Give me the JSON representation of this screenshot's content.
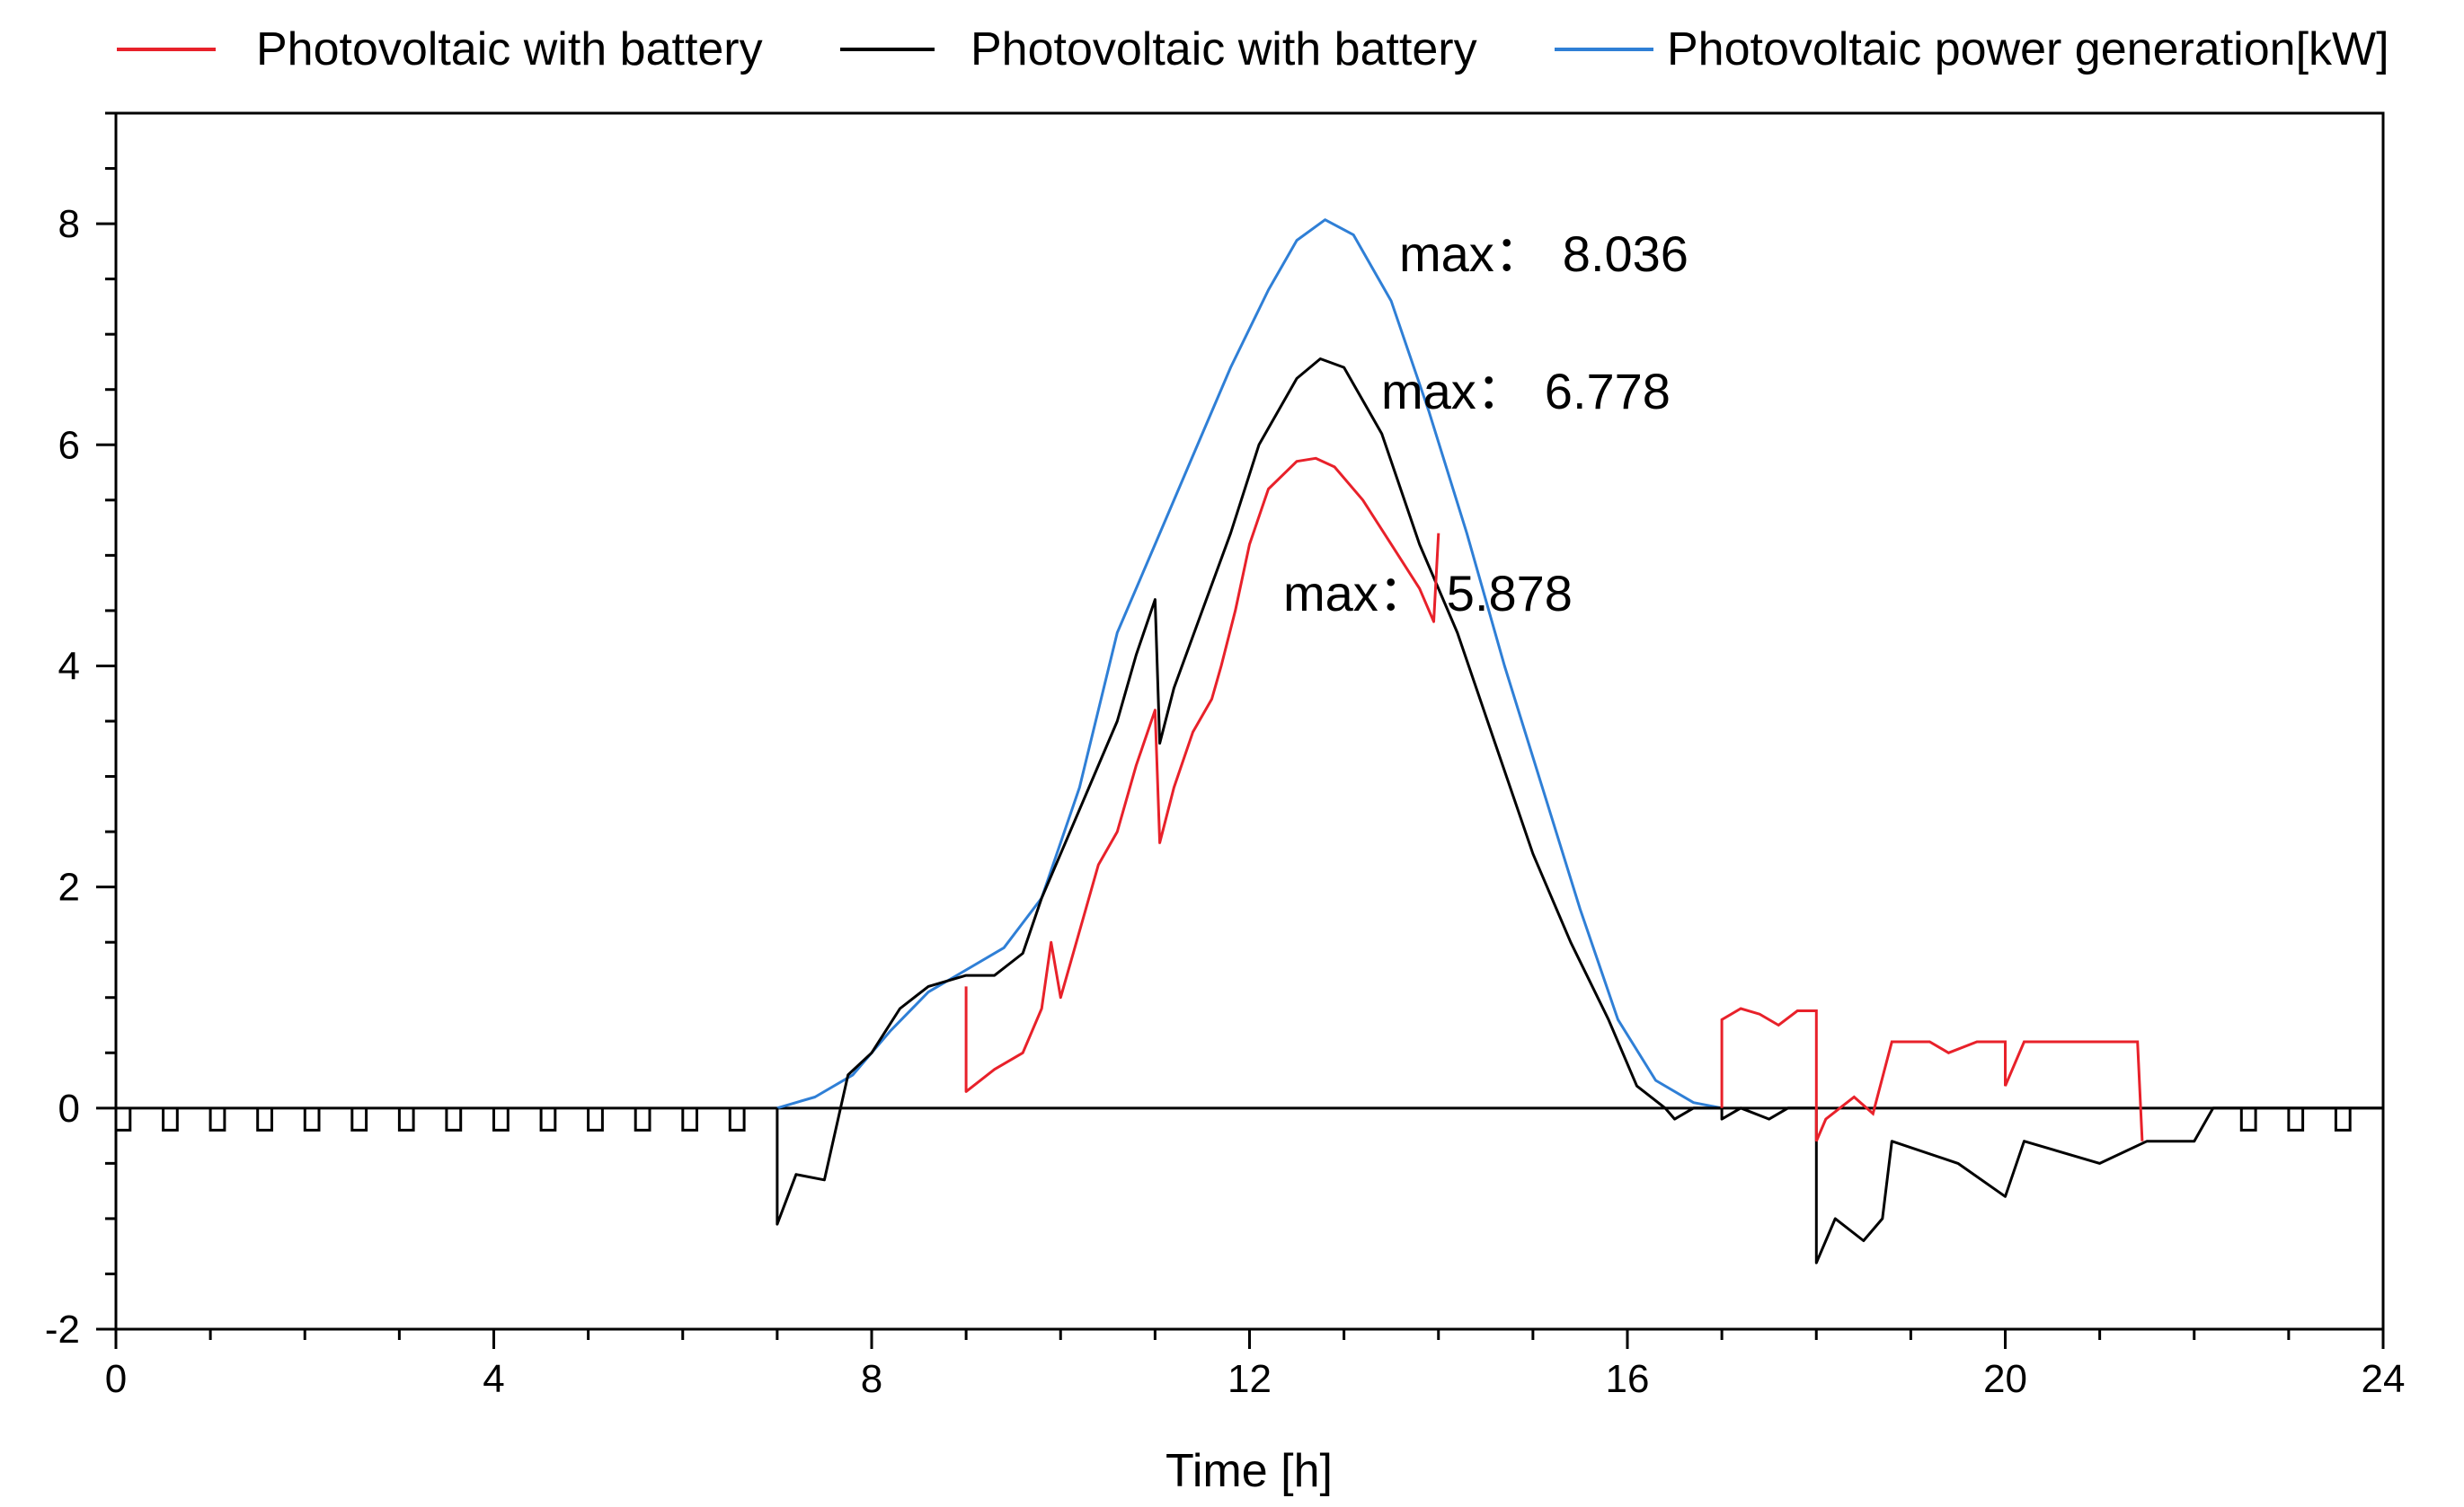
{
  "chart_data": {
    "type": "line",
    "title": "",
    "xlabel": "Time [h]",
    "ylabel": "",
    "xlim": [
      0,
      24
    ],
    "ylim": [
      -2,
      9
    ],
    "x_ticks": [
      0,
      4,
      8,
      12,
      16,
      20,
      24
    ],
    "y_ticks": [
      -2,
      0,
      2,
      4,
      6,
      8
    ],
    "legend_position": "top",
    "series": [
      {
        "name": "Photovoltaic with battery",
        "color": "#e8212a",
        "points": [
          [
            9.0,
            1.1
          ],
          [
            9.0,
            0.15
          ],
          [
            9.3,
            0.35
          ],
          [
            9.6,
            0.5
          ],
          [
            9.8,
            0.9
          ],
          [
            9.9,
            1.5
          ],
          [
            10.0,
            1.0
          ],
          [
            10.2,
            1.6
          ],
          [
            10.4,
            2.2
          ],
          [
            10.6,
            2.5
          ],
          [
            10.8,
            3.1
          ],
          [
            11.0,
            3.6
          ],
          [
            11.05,
            2.4
          ],
          [
            11.2,
            2.9
          ],
          [
            11.4,
            3.4
          ],
          [
            11.6,
            3.7
          ],
          [
            11.7,
            4.0
          ],
          [
            11.85,
            4.5
          ],
          [
            12.0,
            5.1
          ],
          [
            12.2,
            5.6
          ],
          [
            12.5,
            5.85
          ],
          [
            12.7,
            5.878
          ],
          [
            12.9,
            5.8
          ],
          [
            13.2,
            5.5
          ],
          [
            13.5,
            5.1
          ],
          [
            13.8,
            4.7
          ],
          [
            13.95,
            4.4
          ],
          [
            14.0,
            5.2
          ]
        ]
      },
      {
        "name": "Photovoltaic with battery",
        "color": "#000000",
        "points": [
          [
            7.0,
            0.0
          ],
          [
            7.0,
            -1.05
          ],
          [
            7.2,
            -0.6
          ],
          [
            7.5,
            -0.65
          ],
          [
            7.75,
            0.3
          ],
          [
            8.0,
            0.5
          ],
          [
            8.3,
            0.9
          ],
          [
            8.6,
            1.1
          ],
          [
            9.0,
            1.2
          ],
          [
            9.3,
            1.2
          ],
          [
            9.6,
            1.4
          ],
          [
            9.8,
            1.9
          ],
          [
            10.0,
            2.3
          ],
          [
            10.3,
            2.9
          ],
          [
            10.6,
            3.5
          ],
          [
            10.8,
            4.1
          ],
          [
            11.0,
            4.6
          ],
          [
            11.05,
            3.3
          ],
          [
            11.2,
            3.8
          ],
          [
            11.5,
            4.5
          ],
          [
            11.8,
            5.2
          ],
          [
            12.1,
            6.0
          ],
          [
            12.5,
            6.6
          ],
          [
            12.75,
            6.778
          ],
          [
            13.0,
            6.7
          ],
          [
            13.4,
            6.1
          ],
          [
            13.8,
            5.1
          ],
          [
            14.2,
            4.3
          ],
          [
            14.6,
            3.3
          ],
          [
            15.0,
            2.3
          ],
          [
            15.4,
            1.5
          ],
          [
            15.8,
            0.8
          ],
          [
            16.1,
            0.2
          ],
          [
            16.4,
            0.0
          ],
          [
            16.5,
            -0.1
          ],
          [
            16.7,
            0.0
          ],
          [
            17.0,
            0.0
          ],
          [
            17.0,
            -0.1
          ],
          [
            17.2,
            0.0
          ],
          [
            17.5,
            -0.1
          ],
          [
            17.7,
            0.0
          ],
          [
            18.0,
            0.0
          ],
          [
            18.0,
            -1.4
          ],
          [
            18.2,
            -1.0
          ],
          [
            18.5,
            -1.2
          ],
          [
            18.7,
            -1.0
          ],
          [
            18.8,
            -0.3
          ],
          [
            19.5,
            -0.5
          ],
          [
            20.0,
            -0.8
          ],
          [
            20.2,
            -0.3
          ],
          [
            21.0,
            -0.5
          ],
          [
            21.5,
            -0.3
          ],
          [
            22.0,
            -0.3
          ],
          [
            22.2,
            0.0
          ],
          [
            24.0,
            0.0
          ]
        ]
      },
      {
        "name": "Photovoltaic power generation[kW]",
        "color": "#2f7fd6",
        "points": [
          [
            7.0,
            0.0
          ],
          [
            7.4,
            0.1
          ],
          [
            7.8,
            0.3
          ],
          [
            8.2,
            0.7
          ],
          [
            8.6,
            1.05
          ],
          [
            9.0,
            1.25
          ],
          [
            9.4,
            1.45
          ],
          [
            9.8,
            1.9
          ],
          [
            10.2,
            2.9
          ],
          [
            10.6,
            4.3
          ],
          [
            11.0,
            5.1
          ],
          [
            11.4,
            5.9
          ],
          [
            11.8,
            6.7
          ],
          [
            12.2,
            7.4
          ],
          [
            12.5,
            7.85
          ],
          [
            12.8,
            8.036
          ],
          [
            13.1,
            7.9
          ],
          [
            13.5,
            7.3
          ],
          [
            13.9,
            6.3
          ],
          [
            14.3,
            5.2
          ],
          [
            14.7,
            4.0
          ],
          [
            15.1,
            2.9
          ],
          [
            15.5,
            1.8
          ],
          [
            15.9,
            0.8
          ],
          [
            16.3,
            0.25
          ],
          [
            16.7,
            0.05
          ],
          [
            17.0,
            0.0
          ]
        ]
      }
    ],
    "annotations": [
      {
        "text": "max：",
        "value": "8.036"
      },
      {
        "text": "max：",
        "value": "6.778"
      },
      {
        "text": "max：",
        "value": "5.878"
      }
    ]
  }
}
